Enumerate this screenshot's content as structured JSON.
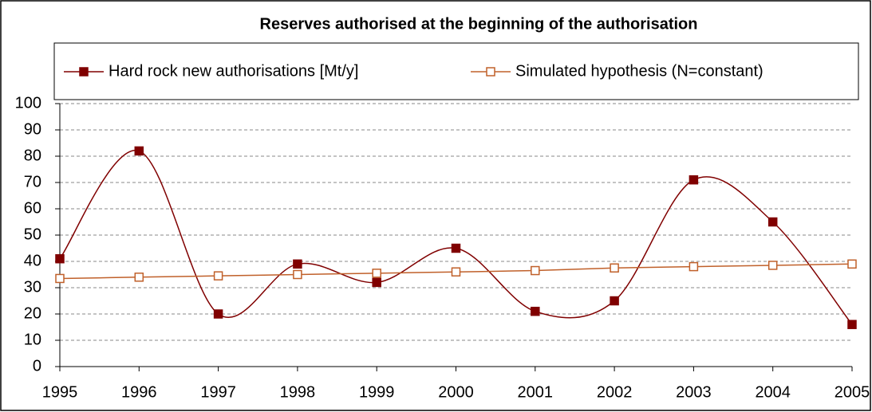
{
  "chart_data": {
    "type": "line",
    "title": "Reserves authorised at the beginning of the authorisation",
    "categories": [
      "1995",
      "1996",
      "1997",
      "1998",
      "1999",
      "2000",
      "2001",
      "2002",
      "2003",
      "2004",
      "2005"
    ],
    "series": [
      {
        "name": "Hard rock new authorisations [Mt/y]",
        "color": "#800000",
        "marker": "filled",
        "values": [
          41,
          82,
          20,
          39,
          32,
          45,
          21,
          25,
          71,
          55,
          16
        ]
      },
      {
        "name": "Simulated hypothesis (N=constant)",
        "color": "#c0602a",
        "marker": "hollow",
        "values": [
          33.5,
          34,
          34.5,
          35,
          35.5,
          36,
          36.5,
          37.5,
          38,
          38.5,
          39
        ]
      }
    ],
    "ylim": [
      0,
      100
    ],
    "yticks": [
      0,
      10,
      20,
      30,
      40,
      50,
      60,
      70,
      80,
      90,
      100
    ],
    "grid": true,
    "smooth": true,
    "legend": "top"
  }
}
